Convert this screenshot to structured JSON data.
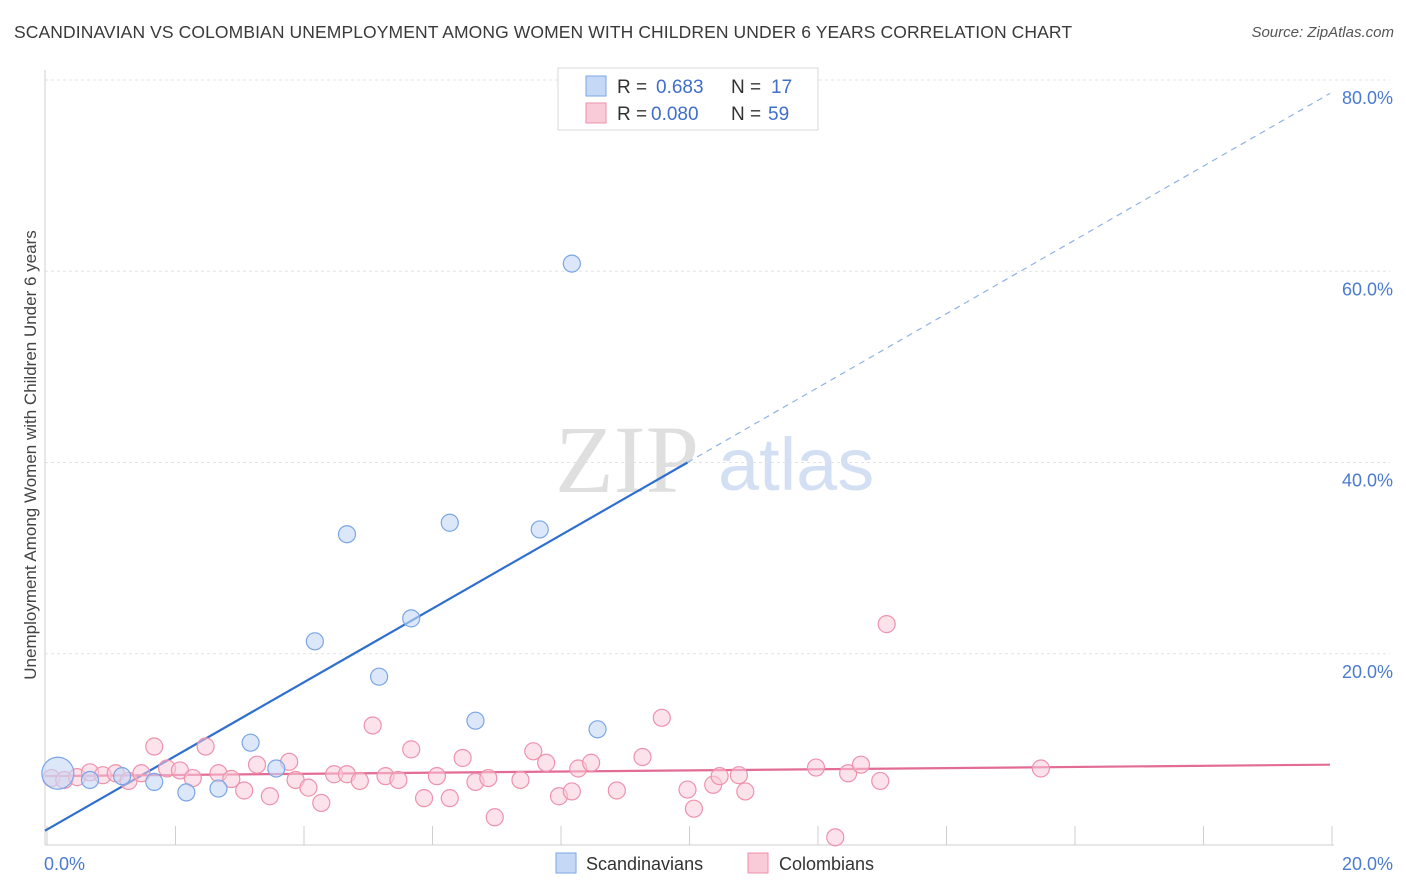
{
  "title": "SCANDINAVIAN VS COLOMBIAN UNEMPLOYMENT AMONG WOMEN WITH CHILDREN UNDER 6 YEARS CORRELATION CHART",
  "source": "Source: ZipAtlas.com",
  "watermark": {
    "zip": "ZIP",
    "atlas": "atlas"
  },
  "colors": {
    "scand_fill": "#c5d9f7",
    "scand_stroke": "#7aa6e6",
    "scand_line": "#2f6fce",
    "colom_fill": "#f9cbd8",
    "colom_stroke": "#ee92ad",
    "colom_line": "#e36c94",
    "grid": "#e3e3e3",
    "tick_text": "#4a7bd0"
  },
  "legend": {
    "rows": [
      {
        "r_label": "R =",
        "r_value": "0.683",
        "n_label": "N =",
        "n_value": "17"
      },
      {
        "r_label": "R =",
        "r_value": "0.080",
        "n_label": "N =",
        "n_value": "59"
      }
    ]
  },
  "chart_data": {
    "type": "scatter",
    "title": "SCANDINAVIAN VS COLOMBIAN UNEMPLOYMENT AMONG WOMEN WITH CHILDREN UNDER 6 YEARS CORRELATION CHART",
    "xlabel": "",
    "ylabel": "Unemployment Among Women with Children Under 6 years",
    "xlim": [
      0,
      20
    ],
    "ylim": [
      0,
      80
    ],
    "x_tick_labels": [
      "0.0%",
      "20.0%"
    ],
    "y_tick_labels": [
      "20.0%",
      "40.0%",
      "60.0%",
      "80.0%"
    ],
    "y_tick_values": [
      20,
      40,
      60,
      80
    ],
    "grid": true,
    "legend_position": "top-center",
    "series": [
      {
        "name": "Scandinavians",
        "points": [
          {
            "x": 0.2,
            "y": 7.5,
            "big": true
          },
          {
            "x": 0.7,
            "y": 6.8
          },
          {
            "x": 1.2,
            "y": 7.2
          },
          {
            "x": 1.7,
            "y": 6.6
          },
          {
            "x": 2.2,
            "y": 5.5
          },
          {
            "x": 2.7,
            "y": 5.9
          },
          {
            "x": 3.2,
            "y": 10.7
          },
          {
            "x": 3.6,
            "y": 8.0
          },
          {
            "x": 4.2,
            "y": 21.3
          },
          {
            "x": 4.7,
            "y": 32.5
          },
          {
            "x": 5.2,
            "y": 17.6
          },
          {
            "x": 5.7,
            "y": 23.7
          },
          {
            "x": 6.3,
            "y": 33.7
          },
          {
            "x": 6.7,
            "y": 13.0
          },
          {
            "x": 7.7,
            "y": 33.0
          },
          {
            "x": 8.2,
            "y": 60.8
          },
          {
            "x": 8.6,
            "y": 12.1
          }
        ],
        "trend": {
          "x0": 0,
          "y0": 1.5,
          "x1": 10,
          "y1": 40,
          "dashed_to_x": 20,
          "dashed_to_y": 78.6
        }
      },
      {
        "name": "Colombians",
        "points": [
          {
            "x": 0.1,
            "y": 7.0
          },
          {
            "x": 0.3,
            "y": 6.8
          },
          {
            "x": 0.5,
            "y": 7.1
          },
          {
            "x": 0.7,
            "y": 7.6
          },
          {
            "x": 0.9,
            "y": 7.3
          },
          {
            "x": 1.1,
            "y": 7.5
          },
          {
            "x": 1.3,
            "y": 6.7
          },
          {
            "x": 1.5,
            "y": 7.5
          },
          {
            "x": 1.7,
            "y": 10.3
          },
          {
            "x": 1.9,
            "y": 8.0
          },
          {
            "x": 2.1,
            "y": 7.8
          },
          {
            "x": 2.3,
            "y": 7.0
          },
          {
            "x": 2.5,
            "y": 10.3
          },
          {
            "x": 2.7,
            "y": 7.5
          },
          {
            "x": 2.9,
            "y": 6.9
          },
          {
            "x": 3.1,
            "y": 5.7
          },
          {
            "x": 3.3,
            "y": 8.4
          },
          {
            "x": 3.5,
            "y": 5.1
          },
          {
            "x": 3.8,
            "y": 8.7
          },
          {
            "x": 3.9,
            "y": 6.8
          },
          {
            "x": 4.1,
            "y": 6.0
          },
          {
            "x": 4.3,
            "y": 4.4
          },
          {
            "x": 4.5,
            "y": 7.4
          },
          {
            "x": 4.7,
            "y": 7.4
          },
          {
            "x": 4.9,
            "y": 6.7
          },
          {
            "x": 5.1,
            "y": 12.5
          },
          {
            "x": 5.3,
            "y": 7.2
          },
          {
            "x": 5.5,
            "y": 6.8
          },
          {
            "x": 5.7,
            "y": 10.0
          },
          {
            "x": 5.9,
            "y": 4.9
          },
          {
            "x": 6.1,
            "y": 7.2
          },
          {
            "x": 6.3,
            "y": 4.9
          },
          {
            "x": 6.5,
            "y": 9.1
          },
          {
            "x": 6.7,
            "y": 6.6
          },
          {
            "x": 6.9,
            "y": 7.0
          },
          {
            "x": 7.0,
            "y": 2.9
          },
          {
            "x": 7.4,
            "y": 6.8
          },
          {
            "x": 7.6,
            "y": 9.8
          },
          {
            "x": 7.8,
            "y": 8.6
          },
          {
            "x": 8.0,
            "y": 5.1
          },
          {
            "x": 8.2,
            "y": 5.6
          },
          {
            "x": 8.3,
            "y": 8.0
          },
          {
            "x": 8.5,
            "y": 8.6
          },
          {
            "x": 8.9,
            "y": 5.7
          },
          {
            "x": 9.3,
            "y": 9.2
          },
          {
            "x": 9.6,
            "y": 13.3
          },
          {
            "x": 10.0,
            "y": 5.8
          },
          {
            "x": 10.1,
            "y": 3.8
          },
          {
            "x": 10.4,
            "y": 6.3
          },
          {
            "x": 10.5,
            "y": 7.2
          },
          {
            "x": 10.8,
            "y": 7.3
          },
          {
            "x": 10.9,
            "y": 5.6
          },
          {
            "x": 12.0,
            "y": 8.1
          },
          {
            "x": 12.3,
            "y": 0.8
          },
          {
            "x": 12.5,
            "y": 7.5
          },
          {
            "x": 12.7,
            "y": 8.4
          },
          {
            "x": 13.0,
            "y": 6.7
          },
          {
            "x": 13.1,
            "y": 23.1
          },
          {
            "x": 15.5,
            "y": 8.0
          }
        ],
        "trend": {
          "x0": 0,
          "y0": 7.2,
          "x1": 20,
          "y1": 8.4
        }
      }
    ]
  }
}
